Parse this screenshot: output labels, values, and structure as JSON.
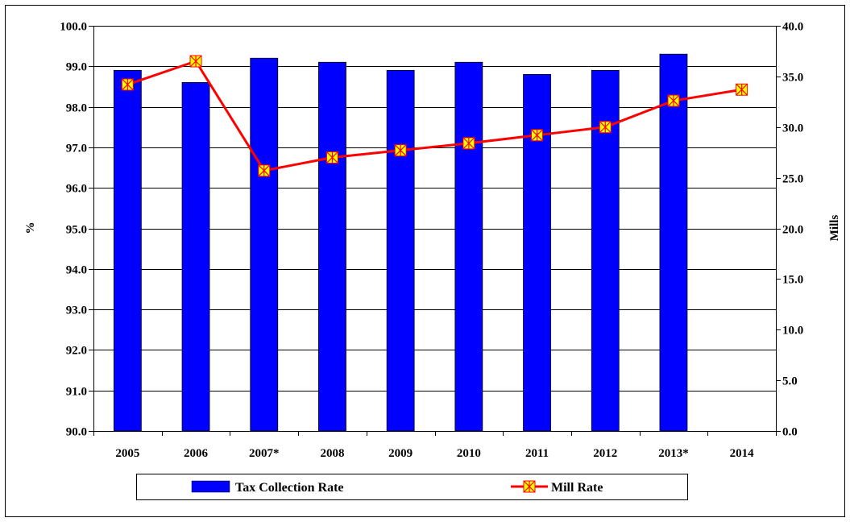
{
  "chart_data": {
    "type": "bar",
    "categories": [
      "2005",
      "2006",
      "2007*",
      "2008",
      "2009",
      "2010",
      "2011",
      "2012",
      "2013*",
      "2014"
    ],
    "ylabel_left": "%",
    "ylabel_right": "Mills",
    "ylim_left": [
      90,
      100
    ],
    "ylim_right": [
      0,
      40
    ],
    "yticks_left": [
      "90.0",
      "91.0",
      "92.0",
      "93.0",
      "94.0",
      "95.0",
      "96.0",
      "97.0",
      "98.0",
      "99.0",
      "100.0"
    ],
    "yticks_right": [
      "0.0",
      "5.0",
      "10.0",
      "15.0",
      "20.0",
      "25.0",
      "30.0",
      "35.0",
      "40.0"
    ],
    "grid": true,
    "legend_position": "bottom",
    "series": [
      {
        "name": "Tax Collection Rate",
        "kind": "bar",
        "axis": "left",
        "color": "#0000ff",
        "values": [
          98.9,
          98.6,
          99.2,
          99.1,
          98.9,
          99.1,
          98.8,
          98.9,
          99.3,
          null
        ]
      },
      {
        "name": "Mill Rate",
        "kind": "line",
        "axis": "right",
        "color": "#ff0000",
        "marker_fill": "#ffff00",
        "values": [
          34.2,
          36.5,
          25.7,
          27.0,
          27.7,
          28.4,
          29.2,
          30.0,
          32.6,
          33.7
        ]
      }
    ]
  }
}
